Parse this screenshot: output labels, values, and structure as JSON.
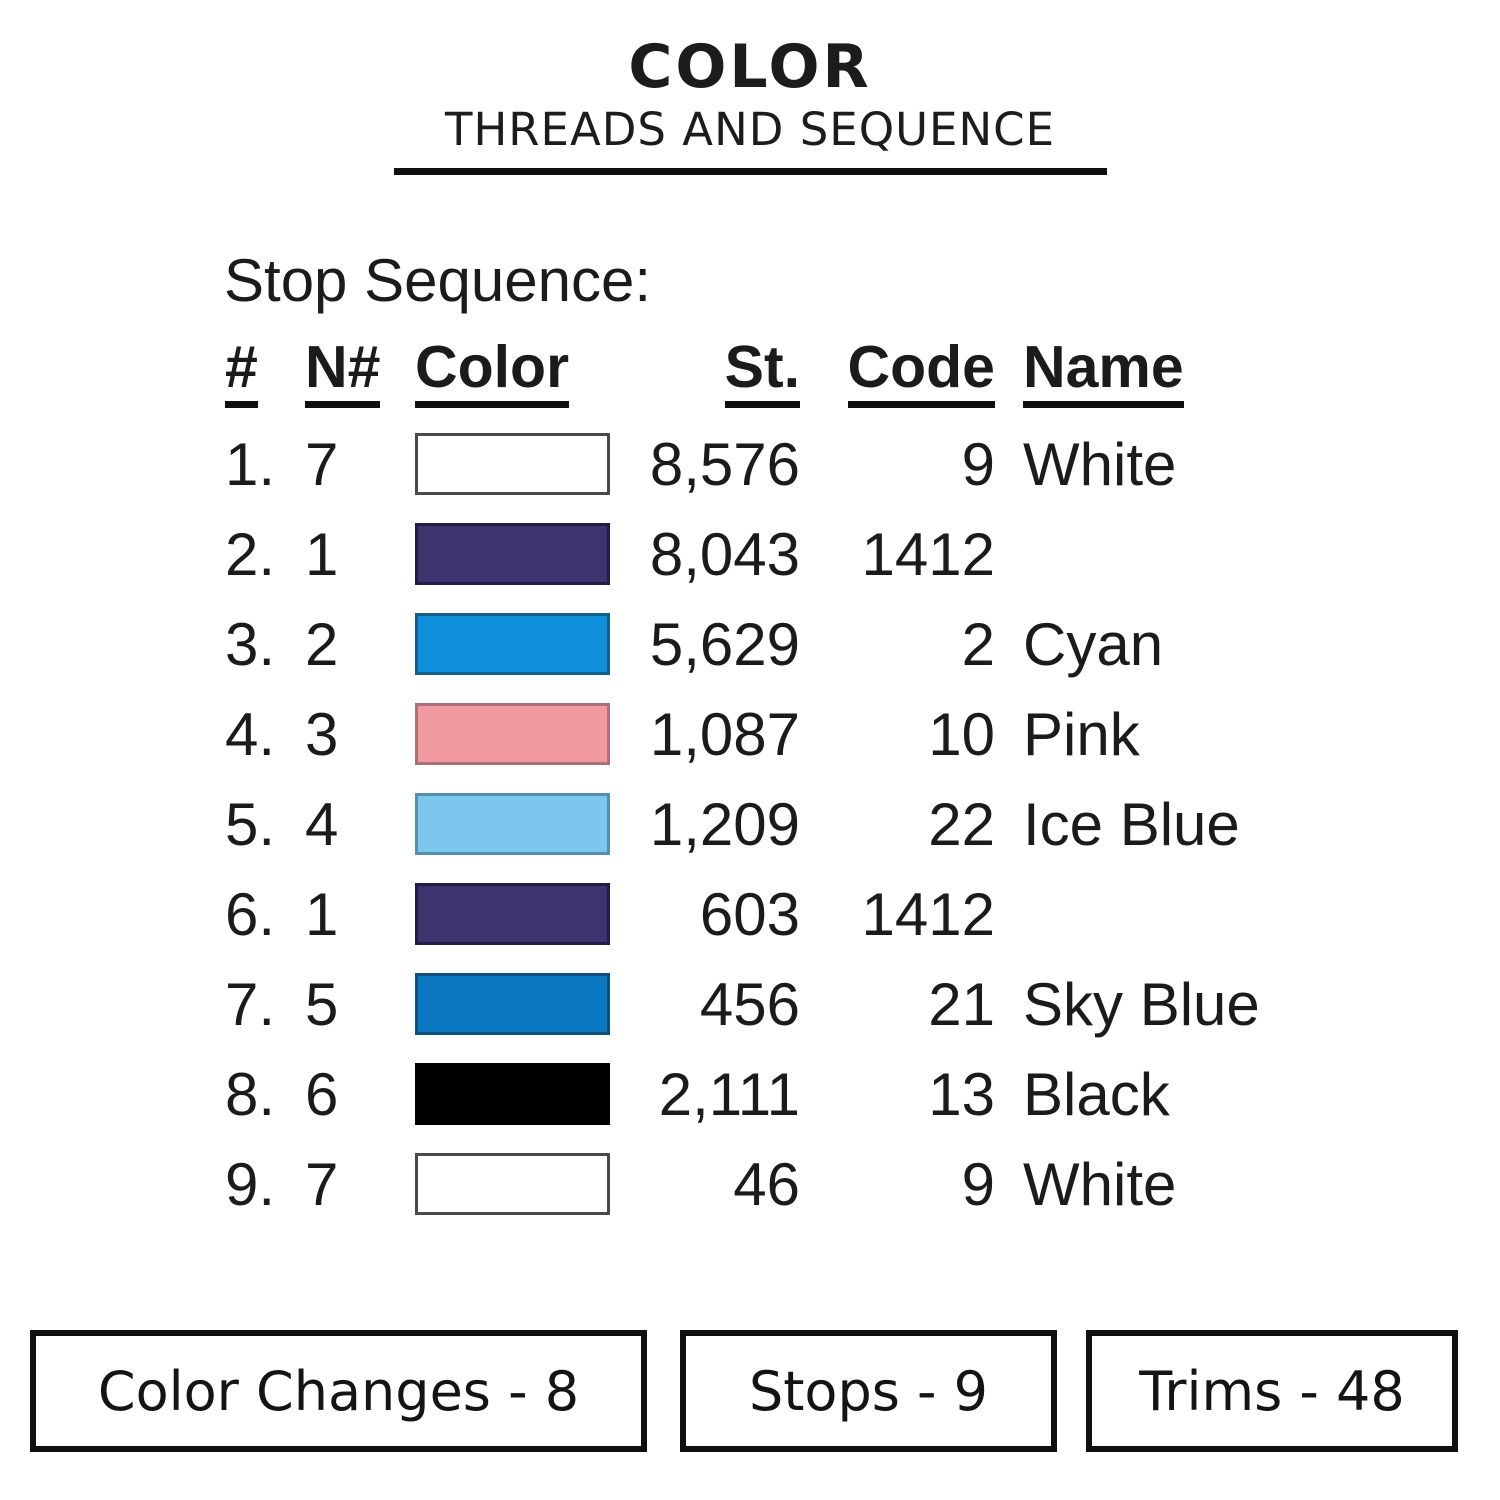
{
  "title": {
    "line1": "COLOR",
    "line2": "THREADS AND SEQUENCE"
  },
  "section_heading": "Stop Sequence:",
  "table": {
    "headers": {
      "num": "#",
      "needle": "N#",
      "color": "Color",
      "stitches": "St.",
      "code": "Code",
      "name": "Name"
    },
    "rows": [
      {
        "num": "1.",
        "n": "7",
        "swatch": "#ffffff",
        "swatch_border": "#4a4a4a",
        "st": "8,576",
        "code": "9",
        "name": "White"
      },
      {
        "num": "2.",
        "n": "1",
        "swatch": "#3d336e",
        "swatch_border": "#221c48",
        "st": "8,043",
        "code": "1412",
        "name": ""
      },
      {
        "num": "3.",
        "n": "2",
        "swatch": "#0f90da",
        "swatch_border": "#135f8c",
        "st": "5,629",
        "code": "2",
        "name": "Cyan"
      },
      {
        "num": "4.",
        "n": "3",
        "swatch": "#f19ba1",
        "swatch_border": "#b07078",
        "st": "1,087",
        "code": "10",
        "name": "Pink"
      },
      {
        "num": "5.",
        "n": "4",
        "swatch": "#7cc7ed",
        "swatch_border": "#5590ad",
        "st": "1,209",
        "code": "22",
        "name": "Ice Blue"
      },
      {
        "num": "6.",
        "n": "1",
        "swatch": "#3d336e",
        "swatch_border": "#221c48",
        "st": "603",
        "code": "1412",
        "name": ""
      },
      {
        "num": "7.",
        "n": "5",
        "swatch": "#0b79c1",
        "swatch_border": "#0f4f7e",
        "st": "456",
        "code": "21",
        "name": "Sky Blue"
      },
      {
        "num": "8.",
        "n": "6",
        "swatch": "#000000",
        "swatch_border": "#000000",
        "st": "2,111",
        "code": "13",
        "name": "Black"
      },
      {
        "num": "9.",
        "n": "7",
        "swatch": "#ffffff",
        "swatch_border": "#4a4a4a",
        "st": "46",
        "code": "9",
        "name": "White"
      }
    ]
  },
  "summary": {
    "color_changes": "Color Changes - 8",
    "stops": "Stops - 9",
    "trims": "Trims - 48"
  },
  "colors": {
    "text": "#1b1b1b",
    "line": "#101010",
    "background": "#ffffff"
  }
}
